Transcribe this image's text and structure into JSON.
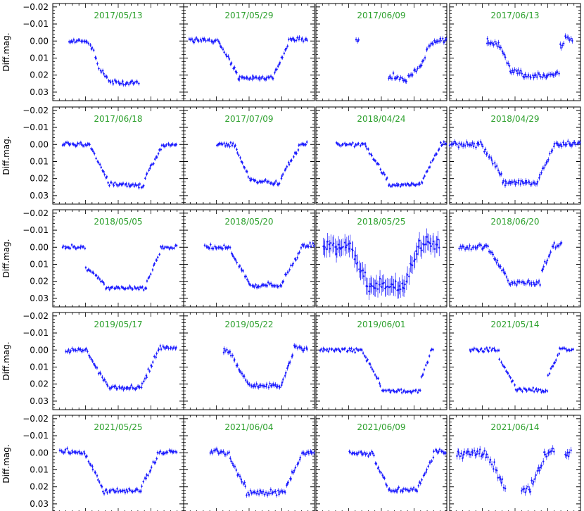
{
  "figure": {
    "y_axis_label": "Diff.mag.",
    "y_tick_labels": [
      "−0.02",
      "−0.01",
      "0.00",
      "0.01",
      "0.02",
      "0.03"
    ],
    "colors": {
      "points": "#1a1aff",
      "title": "#2ca02c",
      "axes": "#000000"
    }
  },
  "chart_data": {
    "type": "scatter",
    "layout": {
      "rows": 5,
      "cols": 4
    },
    "ylabel": "Diff.mag.",
    "ylim": [
      0.035,
      -0.022
    ],
    "y_inverted": true,
    "yticks": [
      -0.02,
      -0.01,
      0.0,
      0.01,
      0.02,
      0.03
    ],
    "x_tick_labels_shown": false,
    "grid": false,
    "panels": [
      {
        "title": "2017/05/13",
        "segments": [
          [
            0.12,
            0.26,
            0.0,
            0.0
          ],
          [
            0.26,
            0.31,
            0.0,
            0.005
          ],
          [
            0.31,
            0.35,
            0.005,
            0.016
          ],
          [
            0.35,
            0.45,
            0.016,
            0.024
          ],
          [
            0.45,
            0.66,
            0.024,
            0.025
          ]
        ],
        "noise": 0.0012,
        "err": 0.0012
      },
      {
        "title": "2017/05/29",
        "segments": [
          [
            0.04,
            0.27,
            -0.001,
            0.0
          ],
          [
            0.27,
            0.42,
            0.0,
            0.021
          ],
          [
            0.42,
            0.68,
            0.022,
            0.022
          ],
          [
            0.68,
            0.8,
            0.021,
            0.002
          ],
          [
            0.8,
            0.95,
            -0.001,
            -0.001
          ]
        ],
        "noise": 0.0012,
        "err": 0.0012
      },
      {
        "title": "2017/06/09",
        "segments": [
          [
            0.3,
            0.33,
            0.0,
            0.0
          ],
          [
            0.55,
            0.7,
            0.021,
            0.023
          ],
          [
            0.7,
            0.84,
            0.023,
            0.01
          ],
          [
            0.84,
            0.9,
            0.006,
            0.0
          ],
          [
            0.9,
            1.0,
            0.0,
            -0.001
          ]
        ],
        "noise": 0.0015,
        "err": 0.0014
      },
      {
        "title": "2017/06/13",
        "segments": [
          [
            0.28,
            0.38,
            0.0,
            0.003
          ],
          [
            0.38,
            0.46,
            0.003,
            0.015
          ],
          [
            0.46,
            0.62,
            0.017,
            0.021
          ],
          [
            0.62,
            0.84,
            0.021,
            0.019
          ],
          [
            0.84,
            0.88,
            0.004,
            0.0
          ],
          [
            0.88,
            0.94,
            -0.002,
            -0.001
          ]
        ],
        "noise": 0.0016,
        "err": 0.0016
      },
      {
        "title": "2017/06/18",
        "segments": [
          [
            0.07,
            0.28,
            0.0,
            0.0
          ],
          [
            0.28,
            0.42,
            0.0,
            0.021
          ],
          [
            0.42,
            0.7,
            0.023,
            0.024
          ],
          [
            0.7,
            0.83,
            0.02,
            0.002
          ],
          [
            0.83,
            0.95,
            0.0,
            0.0
          ]
        ],
        "noise": 0.0011,
        "err": 0.0011
      },
      {
        "title": "2017/07/09",
        "segments": [
          [
            0.25,
            0.4,
            0.0,
            0.0
          ],
          [
            0.4,
            0.5,
            0.002,
            0.02
          ],
          [
            0.5,
            0.74,
            0.021,
            0.023
          ],
          [
            0.74,
            0.88,
            0.02,
            0.002
          ],
          [
            0.88,
            0.95,
            0.0,
            0.0
          ]
        ],
        "noise": 0.0011,
        "err": 0.0011
      },
      {
        "title": "2018/04/24",
        "segments": [
          [
            0.15,
            0.38,
            0.0,
            0.0
          ],
          [
            0.38,
            0.55,
            0.001,
            0.021
          ],
          [
            0.55,
            0.82,
            0.024,
            0.023
          ],
          [
            0.82,
            0.95,
            0.02,
            0.001
          ],
          [
            0.95,
            1.0,
            0.0,
            0.0
          ]
        ],
        "noise": 0.001,
        "err": 0.001
      },
      {
        "title": "2018/04/29",
        "segments": [
          [
            0.0,
            0.25,
            0.0,
            0.0
          ],
          [
            0.25,
            0.4,
            0.001,
            0.019
          ],
          [
            0.4,
            0.68,
            0.022,
            0.023
          ],
          [
            0.68,
            0.8,
            0.02,
            0.001
          ],
          [
            0.8,
            1.0,
            0.0,
            -0.001
          ]
        ],
        "noise": 0.0012,
        "err": 0.0015
      },
      {
        "title": "2018/05/05",
        "segments": [
          [
            0.07,
            0.25,
            0.0,
            0.0
          ],
          [
            0.25,
            0.4,
            0.012,
            0.021
          ],
          [
            0.4,
            0.72,
            0.024,
            0.024
          ],
          [
            0.72,
            0.82,
            0.02,
            0.003
          ],
          [
            0.82,
            0.95,
            0.0,
            0.0
          ]
        ],
        "noise": 0.001,
        "err": 0.001
      },
      {
        "title": "2018/05/20",
        "segments": [
          [
            0.16,
            0.36,
            0.0,
            0.0
          ],
          [
            0.36,
            0.5,
            0.003,
            0.021
          ],
          [
            0.5,
            0.76,
            0.023,
            0.022
          ],
          [
            0.76,
            0.9,
            0.019,
            0.001
          ],
          [
            0.9,
            1.0,
            -0.001,
            -0.001
          ]
        ],
        "noise": 0.0012,
        "err": 0.0012
      },
      {
        "title": "2018/05/25",
        "segments": [
          [
            0.05,
            0.27,
            0.0,
            0.0
          ],
          [
            0.27,
            0.38,
            0.001,
            0.018
          ],
          [
            0.38,
            0.68,
            0.023,
            0.023
          ],
          [
            0.68,
            0.78,
            0.02,
            0.002
          ],
          [
            0.78,
            0.95,
            0.0,
            -0.001
          ]
        ],
        "noise": 0.003,
        "err": 0.005
      },
      {
        "title": "2018/06/20",
        "segments": [
          [
            0.07,
            0.3,
            0.0,
            0.0
          ],
          [
            0.3,
            0.45,
            0.002,
            0.019
          ],
          [
            0.45,
            0.7,
            0.021,
            0.021
          ],
          [
            0.7,
            0.78,
            0.015,
            0.002
          ],
          [
            0.78,
            0.86,
            0.0,
            -0.002
          ]
        ],
        "noise": 0.0013,
        "err": 0.0014
      },
      {
        "title": "2019/05/17",
        "segments": [
          [
            0.1,
            0.27,
            0.0,
            0.0
          ],
          [
            0.27,
            0.42,
            0.003,
            0.02
          ],
          [
            0.42,
            0.68,
            0.022,
            0.022
          ],
          [
            0.68,
            0.8,
            0.02,
            0.002
          ],
          [
            0.8,
            0.95,
            -0.001,
            -0.001
          ]
        ],
        "noise": 0.0012,
        "err": 0.0012
      },
      {
        "title": "2019/05/22",
        "segments": [
          [
            0.3,
            0.36,
            0.0,
            0.001
          ],
          [
            0.36,
            0.5,
            0.003,
            0.02
          ],
          [
            0.5,
            0.75,
            0.021,
            0.021
          ],
          [
            0.75,
            0.84,
            0.019,
            0.002
          ],
          [
            0.84,
            0.95,
            -0.002,
            0.0
          ]
        ],
        "noise": 0.0012,
        "err": 0.0014
      },
      {
        "title": "2019/06/01",
        "segments": [
          [
            0.03,
            0.35,
            0.0,
            0.0
          ],
          [
            0.35,
            0.5,
            0.0,
            0.021
          ],
          [
            0.5,
            0.8,
            0.024,
            0.024
          ],
          [
            0.8,
            0.87,
            0.018,
            0.003
          ],
          [
            0.87,
            0.9,
            0.0,
            0.0
          ]
        ],
        "noise": 0.001,
        "err": 0.001
      },
      {
        "title": "2021/05/14",
        "segments": [
          [
            0.15,
            0.38,
            0.0,
            0.0
          ],
          [
            0.38,
            0.5,
            0.005,
            0.021
          ],
          [
            0.5,
            0.75,
            0.023,
            0.024
          ],
          [
            0.75,
            0.84,
            0.015,
            0.002
          ],
          [
            0.84,
            0.95,
            -0.001,
            0.0
          ]
        ],
        "noise": 0.001,
        "err": 0.001
      },
      {
        "title": "2021/05/25",
        "segments": [
          [
            0.05,
            0.25,
            -0.001,
            0.0
          ],
          [
            0.25,
            0.38,
            0.001,
            0.021
          ],
          [
            0.38,
            0.68,
            0.023,
            0.022
          ],
          [
            0.68,
            0.8,
            0.02,
            0.002
          ],
          [
            0.8,
            0.95,
            0.0,
            -0.001
          ]
        ],
        "noise": 0.0012,
        "err": 0.0012
      },
      {
        "title": "2021/06/04",
        "segments": [
          [
            0.2,
            0.35,
            -0.001,
            0.0
          ],
          [
            0.35,
            0.48,
            0.003,
            0.021
          ],
          [
            0.48,
            0.78,
            0.024,
            0.023
          ],
          [
            0.78,
            0.9,
            0.02,
            0.002
          ],
          [
            0.9,
            1.0,
            0.0,
            0.0
          ]
        ],
        "noise": 0.0013,
        "err": 0.0014
      },
      {
        "title": "2021/06/09",
        "segments": [
          [
            0.25,
            0.45,
            0.0,
            0.001
          ],
          [
            0.45,
            0.55,
            0.005,
            0.02
          ],
          [
            0.55,
            0.78,
            0.022,
            0.022
          ],
          [
            0.78,
            0.9,
            0.02,
            0.002
          ],
          [
            0.9,
            1.0,
            -0.001,
            0.0
          ]
        ],
        "noise": 0.0011,
        "err": 0.0012
      },
      {
        "title": "2021/06/14",
        "segments": [
          [
            0.05,
            0.3,
            0.0,
            0.001
          ],
          [
            0.3,
            0.43,
            0.003,
            0.021
          ],
          [
            0.55,
            0.62,
            0.022,
            0.023
          ],
          [
            0.62,
            0.72,
            0.02,
            0.004
          ],
          [
            0.72,
            0.8,
            0.0,
            -0.001
          ],
          [
            0.88,
            0.93,
            0.001,
            0.001
          ]
        ],
        "noise": 0.0022,
        "err": 0.002
      }
    ]
  }
}
